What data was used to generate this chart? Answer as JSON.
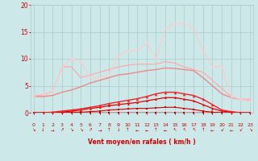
{
  "x": [
    0,
    1,
    2,
    3,
    4,
    5,
    6,
    7,
    8,
    9,
    10,
    11,
    12,
    13,
    14,
    15,
    16,
    17,
    18,
    19,
    20,
    21,
    22,
    23
  ],
  "lines": [
    {
      "y": [
        0,
        0,
        0,
        0,
        0,
        0,
        0,
        0,
        0,
        0,
        0,
        0,
        0,
        0,
        0,
        0,
        0,
        0,
        0,
        0,
        0,
        0,
        0,
        0
      ],
      "color": "#cc0000",
      "lw": 1.0,
      "marker": "s",
      "ms": 1.8
    },
    {
      "y": [
        0,
        0,
        0,
        0,
        0,
        0,
        0,
        0,
        0,
        0,
        0,
        0,
        0,
        0,
        0,
        0,
        0,
        0,
        0,
        0,
        0,
        0,
        0,
        0
      ],
      "color": "#bb0000",
      "lw": 1.0,
      "marker": "s",
      "ms": 1.8
    },
    {
      "y": [
        0,
        0,
        0,
        0.1,
        0.1,
        0.1,
        0.2,
        0.3,
        0.5,
        0.6,
        0.7,
        0.8,
        0.8,
        0.9,
        1.0,
        1.0,
        0.8,
        0.6,
        0.3,
        0.1,
        0,
        0,
        0,
        0
      ],
      "color": "#cc0000",
      "lw": 0.8,
      "marker": "s",
      "ms": 1.5
    },
    {
      "y": [
        0,
        0,
        0,
        0.1,
        0.3,
        0.5,
        0.8,
        1.0,
        1.3,
        1.5,
        1.7,
        1.9,
        2.2,
        2.5,
        2.8,
        2.8,
        2.5,
        2.2,
        1.5,
        0.8,
        0.3,
        0.1,
        0,
        0
      ],
      "color": "#dd0000",
      "lw": 0.9,
      "marker": "^",
      "ms": 2.0
    },
    {
      "y": [
        0,
        0,
        0.1,
        0.3,
        0.5,
        0.7,
        1.0,
        1.3,
        1.7,
        2.0,
        2.3,
        2.6,
        3.0,
        3.5,
        3.8,
        3.8,
        3.5,
        3.2,
        2.5,
        1.5,
        0.5,
        0.2,
        0,
        0
      ],
      "color": "#ee2222",
      "lw": 1.0,
      "marker": "^",
      "ms": 2.5
    },
    {
      "y": [
        3.0,
        3.0,
        3.2,
        3.8,
        4.2,
        4.8,
        5.5,
        6.0,
        6.5,
        7.0,
        7.2,
        7.5,
        7.8,
        8.0,
        8.3,
        8.2,
        8.0,
        7.8,
        6.5,
        5.0,
        3.5,
        2.8,
        2.5,
        2.2
      ],
      "color": "#ee8888",
      "lw": 1.0,
      "marker": null,
      "ms": 0
    },
    {
      "y": [
        3.2,
        3.3,
        4.0,
        8.5,
        8.5,
        6.5,
        7.0,
        7.5,
        8.0,
        8.5,
        8.8,
        9.0,
        9.0,
        9.0,
        9.5,
        9.2,
        8.5,
        8.0,
        7.5,
        6.0,
        4.5,
        3.0,
        2.5,
        2.5
      ],
      "color": "#ffaaaa",
      "lw": 0.9,
      "marker": null,
      "ms": 0
    },
    {
      "y": [
        3.2,
        3.5,
        4.0,
        8.5,
        10.0,
        9.5,
        6.5,
        6.5,
        7.0,
        10.5,
        11.5,
        11.5,
        13.0,
        10.0,
        15.5,
        16.5,
        16.5,
        15.5,
        11.5,
        8.5,
        8.5,
        3.0,
        2.5,
        2.2
      ],
      "color": "#ffcccc",
      "lw": 0.9,
      "marker": "o",
      "ms": 2.0
    }
  ],
  "xlim": [
    -0.3,
    23.3
  ],
  "ylim": [
    0,
    20
  ],
  "yticks": [
    0,
    5,
    10,
    15,
    20
  ],
  "xticks": [
    0,
    1,
    2,
    3,
    4,
    5,
    6,
    7,
    8,
    9,
    10,
    11,
    12,
    13,
    14,
    15,
    16,
    17,
    18,
    19,
    20,
    21,
    22,
    23
  ],
  "xlabel": "Vent moyen/en rafales ( km/h )",
  "bg_color": "#cce8e8",
  "grid_color": "#aacccc",
  "tick_color": "#cc0000",
  "label_color": "#cc0000",
  "arrows": [
    "↘",
    "↓",
    "→",
    "↗",
    "↘",
    "↘",
    "↗",
    "→",
    "↑",
    "↓",
    "↑",
    "←",
    "←",
    "↑",
    "←",
    "↖",
    "↖",
    "↖",
    "↑",
    "←",
    "↙",
    "←",
    "↙",
    "↘"
  ]
}
